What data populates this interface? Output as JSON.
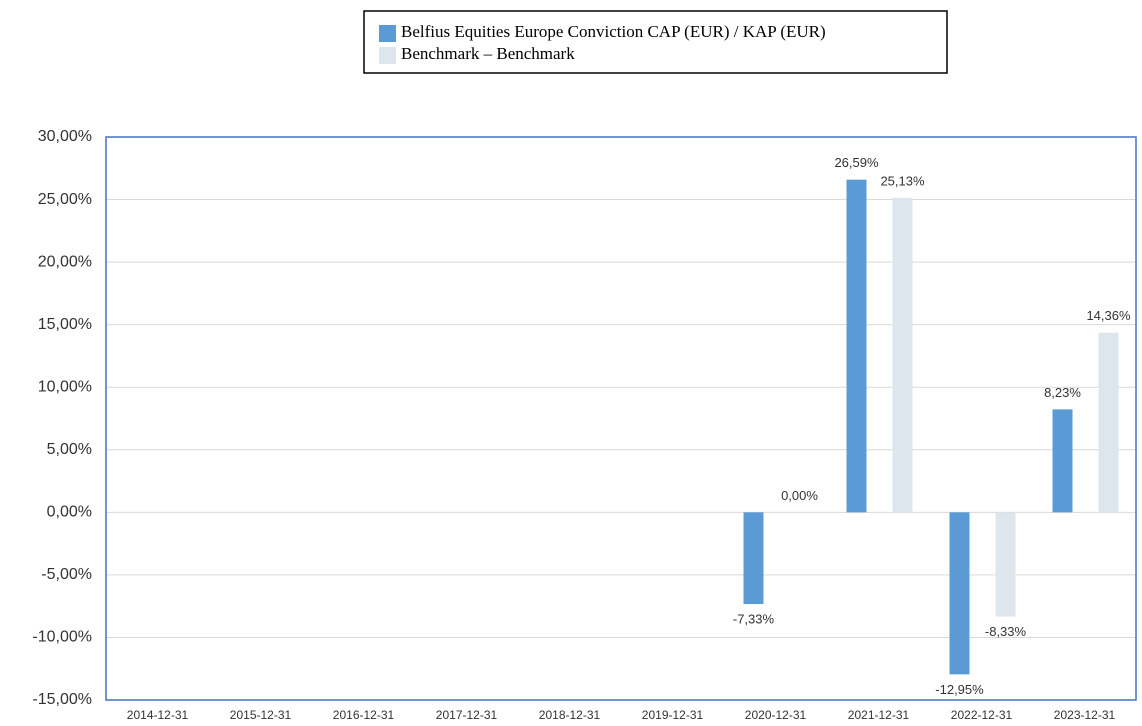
{
  "chart_data": {
    "type": "bar",
    "categories": [
      "2014-12-31",
      "2015-12-31",
      "2016-12-31",
      "2017-12-31",
      "2018-12-31",
      "2019-12-31",
      "2020-12-31",
      "2021-12-31",
      "2022-12-31",
      "2023-12-31"
    ],
    "series": [
      {
        "name": "Belfius Equities Europe Conviction CAP (EUR) / KAP (EUR)",
        "color": "#5b9bd5",
        "values": [
          null,
          null,
          null,
          null,
          null,
          null,
          -7.33,
          26.59,
          -12.95,
          8.23
        ],
        "value_labels": [
          null,
          null,
          null,
          null,
          null,
          null,
          "-7,33%",
          "26,59%",
          "-12,95%",
          "8,23%"
        ]
      },
      {
        "name": "Benchmark – Benchmark",
        "color": "#dce6ec",
        "values": [
          null,
          null,
          null,
          null,
          null,
          null,
          0.0,
          25.13,
          -8.33,
          14.36
        ],
        "value_labels": [
          null,
          null,
          null,
          null,
          null,
          null,
          "0,00%",
          "25,13%",
          "-8,33%",
          "14,36%"
        ]
      }
    ],
    "ylim": [
      -15,
      30
    ],
    "yticks": [
      {
        "value": -15,
        "label": "-15,00%"
      },
      {
        "value": -10,
        "label": "-10,00%"
      },
      {
        "value": -5,
        "label": "-5,00%"
      },
      {
        "value": 0,
        "label": "0,00%"
      },
      {
        "value": 5,
        "label": "5,00%"
      },
      {
        "value": 10,
        "label": "10,00%"
      },
      {
        "value": 15,
        "label": "15,00%"
      },
      {
        "value": 20,
        "label": "20,00%"
      },
      {
        "value": 25,
        "label": "25,00%"
      },
      {
        "value": 30,
        "label": "30,00%"
      }
    ],
    "grid": true
  }
}
